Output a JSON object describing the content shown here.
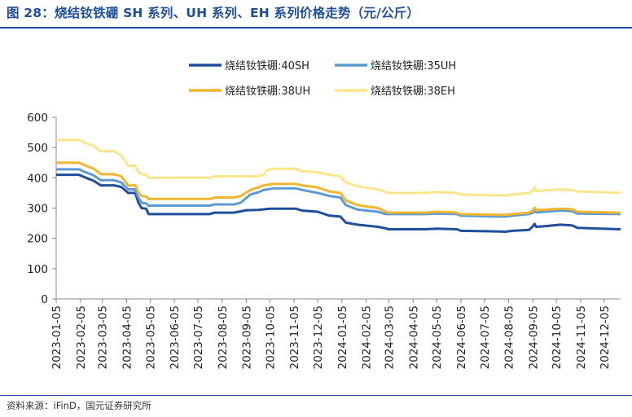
{
  "title": "图 28：烧结钕铁硼 SH 系列、UH 系列、EH 系列价格走势（元/公斤）",
  "source": "资料来源：iFinD，国元证券研究所",
  "chart_data": {
    "type": "line",
    "title": "图 28：烧结钕铁硼 SH 系列、UH 系列、EH 系列价格走势（元/公斤）",
    "ylabel": "",
    "xlabel": "",
    "ylim": [
      0,
      600
    ],
    "yticks": [
      0,
      100,
      200,
      300,
      400,
      500,
      600
    ],
    "xlim": [
      "2023-01-05",
      "2024-12-26"
    ],
    "xticks": [
      "2023-01-05",
      "2023-02-05",
      "2023-03-05",
      "2023-04-05",
      "2023-05-05",
      "2023-06-05",
      "2023-07-05",
      "2023-08-05",
      "2023-09-05",
      "2023-10-05",
      "2023-11-05",
      "2023-12-05",
      "2024-01-05",
      "2024-02-05",
      "2024-03-05",
      "2024-04-05",
      "2024-05-05",
      "2024-06-05",
      "2024-07-05",
      "2024-08-05",
      "2024-09-05",
      "2024-10-05",
      "2024-11-05",
      "2024-12-05"
    ],
    "grid": false,
    "legend": "top-center",
    "series": [
      {
        "name": "烧结钕铁硼:40SH",
        "color": "#1f4e9c",
        "points": [
          [
            "2023-01-05",
            410
          ],
          [
            "2023-02-03",
            410
          ],
          [
            "2023-02-12",
            400
          ],
          [
            "2023-02-22",
            390
          ],
          [
            "2023-03-03",
            375
          ],
          [
            "2023-03-20",
            375
          ],
          [
            "2023-03-29",
            370
          ],
          [
            "2023-04-07",
            350
          ],
          [
            "2023-04-16",
            350
          ],
          [
            "2023-04-20",
            318
          ],
          [
            "2023-04-24",
            300
          ],
          [
            "2023-04-30",
            298
          ],
          [
            "2023-05-03",
            280
          ],
          [
            "2023-05-15",
            280
          ],
          [
            "2023-07-20",
            280
          ],
          [
            "2023-07-26",
            285
          ],
          [
            "2023-08-20",
            285
          ],
          [
            "2023-09-05",
            293
          ],
          [
            "2023-09-20",
            294
          ],
          [
            "2023-10-05",
            298
          ],
          [
            "2023-11-07",
            298
          ],
          [
            "2023-11-15",
            292
          ],
          [
            "2023-12-05",
            288
          ],
          [
            "2023-12-20",
            275
          ],
          [
            "2024-01-03",
            272
          ],
          [
            "2024-01-10",
            252
          ],
          [
            "2024-01-25",
            245
          ],
          [
            "2024-02-20",
            238
          ],
          [
            "2024-03-01",
            233
          ],
          [
            "2024-03-05",
            230
          ],
          [
            "2024-04-20",
            230
          ],
          [
            "2024-05-05",
            232
          ],
          [
            "2024-05-31",
            230
          ],
          [
            "2024-06-05",
            225
          ],
          [
            "2024-07-20",
            223
          ],
          [
            "2024-08-01",
            222
          ],
          [
            "2024-08-10",
            225
          ],
          [
            "2024-08-31",
            228
          ],
          [
            "2024-09-05",
            240
          ],
          [
            "2024-09-07",
            248
          ],
          [
            "2024-09-09",
            238
          ],
          [
            "2024-09-20",
            240
          ],
          [
            "2024-10-10",
            245
          ],
          [
            "2024-10-25",
            243
          ],
          [
            "2024-11-01",
            235
          ],
          [
            "2024-11-20",
            233
          ],
          [
            "2024-12-26",
            230
          ]
        ]
      },
      {
        "name": "烧结钕铁硼:35UH",
        "color": "#5b9bd5",
        "points": [
          [
            "2023-01-05",
            428
          ],
          [
            "2023-02-03",
            428
          ],
          [
            "2023-02-12",
            418
          ],
          [
            "2023-02-22",
            408
          ],
          [
            "2023-03-03",
            392
          ],
          [
            "2023-03-20",
            392
          ],
          [
            "2023-03-29",
            385
          ],
          [
            "2023-04-07",
            362
          ],
          [
            "2023-04-16",
            362
          ],
          [
            "2023-04-20",
            335
          ],
          [
            "2023-04-24",
            318
          ],
          [
            "2023-04-30",
            315
          ],
          [
            "2023-05-03",
            308
          ],
          [
            "2023-05-15",
            308
          ],
          [
            "2023-07-20",
            308
          ],
          [
            "2023-07-26",
            312
          ],
          [
            "2023-08-20",
            312
          ],
          [
            "2023-08-29",
            318
          ],
          [
            "2023-09-10",
            345
          ],
          [
            "2023-09-20",
            352
          ],
          [
            "2023-09-27",
            360
          ],
          [
            "2023-10-10",
            365
          ],
          [
            "2023-11-07",
            365
          ],
          [
            "2023-11-15",
            360
          ],
          [
            "2023-12-05",
            350
          ],
          [
            "2023-12-20",
            340
          ],
          [
            "2024-01-03",
            335
          ],
          [
            "2024-01-10",
            310
          ],
          [
            "2024-01-25",
            295
          ],
          [
            "2024-02-20",
            288
          ],
          [
            "2024-03-01",
            280
          ],
          [
            "2024-04-20",
            280
          ],
          [
            "2024-05-05",
            282
          ],
          [
            "2024-05-31",
            280
          ],
          [
            "2024-06-05",
            275
          ],
          [
            "2024-07-20",
            272
          ],
          [
            "2024-08-01",
            272
          ],
          [
            "2024-08-10",
            275
          ],
          [
            "2024-08-31",
            280
          ],
          [
            "2024-09-05",
            285
          ],
          [
            "2024-09-07",
            292
          ],
          [
            "2024-09-09",
            286
          ],
          [
            "2024-09-20",
            288
          ],
          [
            "2024-10-10",
            292
          ],
          [
            "2024-10-25",
            290
          ],
          [
            "2024-11-01",
            282
          ],
          [
            "2024-12-26",
            280
          ]
        ]
      },
      {
        "name": "烧结钕铁硼:38UH",
        "color": "#f4b52e",
        "points": [
          [
            "2023-01-05",
            450
          ],
          [
            "2023-02-03",
            450
          ],
          [
            "2023-02-12",
            440
          ],
          [
            "2023-02-22",
            430
          ],
          [
            "2023-03-03",
            412
          ],
          [
            "2023-03-20",
            412
          ],
          [
            "2023-03-29",
            405
          ],
          [
            "2023-04-07",
            375
          ],
          [
            "2023-04-16",
            375
          ],
          [
            "2023-04-20",
            352
          ],
          [
            "2023-04-24",
            340
          ],
          [
            "2023-04-30",
            338
          ],
          [
            "2023-05-03",
            330
          ],
          [
            "2023-05-15",
            330
          ],
          [
            "2023-07-20",
            330
          ],
          [
            "2023-07-26",
            335
          ],
          [
            "2023-08-20",
            335
          ],
          [
            "2023-08-29",
            340
          ],
          [
            "2023-09-10",
            360
          ],
          [
            "2023-09-20",
            368
          ],
          [
            "2023-09-27",
            375
          ],
          [
            "2023-10-10",
            380
          ],
          [
            "2023-11-07",
            380
          ],
          [
            "2023-11-15",
            375
          ],
          [
            "2023-12-05",
            368
          ],
          [
            "2023-12-20",
            355
          ],
          [
            "2024-01-03",
            350
          ],
          [
            "2024-01-10",
            325
          ],
          [
            "2024-01-25",
            310
          ],
          [
            "2024-02-20",
            300
          ],
          [
            "2024-03-01",
            288
          ],
          [
            "2024-03-05",
            285
          ],
          [
            "2024-04-20",
            285
          ],
          [
            "2024-05-05",
            288
          ],
          [
            "2024-05-31",
            285
          ],
          [
            "2024-06-05",
            280
          ],
          [
            "2024-07-20",
            278
          ],
          [
            "2024-08-01",
            278
          ],
          [
            "2024-08-10",
            280
          ],
          [
            "2024-08-31",
            285
          ],
          [
            "2024-09-05",
            292
          ],
          [
            "2024-09-07",
            302
          ],
          [
            "2024-09-09",
            293
          ],
          [
            "2024-09-20",
            295
          ],
          [
            "2024-10-10",
            298
          ],
          [
            "2024-10-25",
            296
          ],
          [
            "2024-11-01",
            288
          ],
          [
            "2024-12-26",
            285
          ]
        ]
      },
      {
        "name": "烧结钕铁硼:38EH",
        "color": "#fbe58a",
        "points": [
          [
            "2023-01-05",
            525
          ],
          [
            "2023-02-03",
            525
          ],
          [
            "2023-02-12",
            515
          ],
          [
            "2023-02-22",
            505
          ],
          [
            "2023-03-03",
            488
          ],
          [
            "2023-03-20",
            488
          ],
          [
            "2023-03-29",
            475
          ],
          [
            "2023-04-07",
            440
          ],
          [
            "2023-04-16",
            440
          ],
          [
            "2023-04-20",
            420
          ],
          [
            "2023-04-24",
            412
          ],
          [
            "2023-04-30",
            410
          ],
          [
            "2023-05-03",
            400
          ],
          [
            "2023-05-15",
            400
          ],
          [
            "2023-07-20",
            400
          ],
          [
            "2023-07-26",
            405
          ],
          [
            "2023-09-20",
            405
          ],
          [
            "2023-09-27",
            410
          ],
          [
            "2023-10-01",
            425
          ],
          [
            "2023-10-10",
            430
          ],
          [
            "2023-11-07",
            430
          ],
          [
            "2023-11-15",
            422
          ],
          [
            "2023-12-05",
            418
          ],
          [
            "2023-12-20",
            410
          ],
          [
            "2024-01-03",
            405
          ],
          [
            "2024-01-10",
            385
          ],
          [
            "2024-01-25",
            372
          ],
          [
            "2024-02-20",
            362
          ],
          [
            "2024-03-01",
            353
          ],
          [
            "2024-03-05",
            350
          ],
          [
            "2024-04-20",
            350
          ],
          [
            "2024-05-05",
            353
          ],
          [
            "2024-05-31",
            350
          ],
          [
            "2024-06-05",
            345
          ],
          [
            "2024-07-20",
            342
          ],
          [
            "2024-08-01",
            342
          ],
          [
            "2024-08-10",
            345
          ],
          [
            "2024-08-31",
            350
          ],
          [
            "2024-09-05",
            358
          ],
          [
            "2024-09-07",
            370
          ],
          [
            "2024-09-09",
            356
          ],
          [
            "2024-09-20",
            358
          ],
          [
            "2024-10-10",
            362
          ],
          [
            "2024-10-25",
            360
          ],
          [
            "2024-11-01",
            355
          ],
          [
            "2024-12-26",
            350
          ]
        ]
      }
    ]
  }
}
